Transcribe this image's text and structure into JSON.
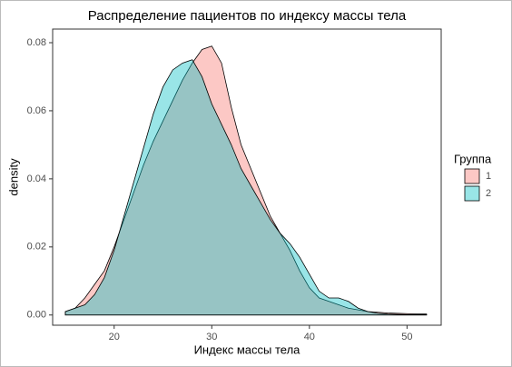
{
  "chart_data": {
    "type": "density",
    "title": "Распределение пациентов по индексу массы тела",
    "x_label": "Индекс массы тела",
    "y_label": "density",
    "legend_title": "Группа",
    "legend_position": "right",
    "x": [
      15,
      16,
      17,
      18,
      19,
      20,
      21,
      22,
      23,
      24,
      25,
      26,
      27,
      28,
      29,
      30,
      31,
      32,
      33,
      34,
      35,
      36,
      37,
      38,
      39,
      40,
      41,
      42,
      43,
      44,
      45,
      46,
      47,
      48,
      49,
      50,
      51,
      52
    ],
    "series": [
      {
        "name": "1",
        "color": "#f8766d",
        "values": [
          0.001,
          0.002,
          0.005,
          0.009,
          0.013,
          0.02,
          0.028,
          0.036,
          0.044,
          0.051,
          0.057,
          0.063,
          0.069,
          0.074,
          0.078,
          0.079,
          0.074,
          0.061,
          0.05,
          0.043,
          0.036,
          0.029,
          0.024,
          0.019,
          0.013,
          0.008,
          0.005,
          0.004,
          0.003,
          0.002,
          0.0015,
          0.001,
          0.0008,
          0.0006,
          0.0005,
          0.0004,
          0.0003,
          0.0003
        ]
      },
      {
        "name": "2",
        "color": "#00bfc4",
        "values": [
          0.001,
          0.002,
          0.003,
          0.006,
          0.011,
          0.019,
          0.029,
          0.039,
          0.049,
          0.059,
          0.067,
          0.072,
          0.074,
          0.075,
          0.07,
          0.062,
          0.056,
          0.05,
          0.043,
          0.038,
          0.033,
          0.028,
          0.024,
          0.021,
          0.017,
          0.012,
          0.007,
          0.005,
          0.005,
          0.004,
          0.002,
          0.001,
          0.0005,
          0.0003,
          0.0002,
          0.0001,
          0.0001,
          0.0001
        ]
      }
    ],
    "xlim": [
      13.7,
      53.5
    ],
    "xticks": [
      20,
      30,
      40,
      50
    ],
    "ylim": [
      -0.003,
      0.084
    ],
    "yticks": [
      {
        "value": 0,
        "label": "0.00"
      },
      {
        "value": 0.02,
        "label": "0.02"
      },
      {
        "value": 0.04,
        "label": "0.04"
      },
      {
        "value": 0.06,
        "label": "0.06"
      },
      {
        "value": 0.08,
        "label": "0.08"
      }
    ],
    "grid": false
  }
}
